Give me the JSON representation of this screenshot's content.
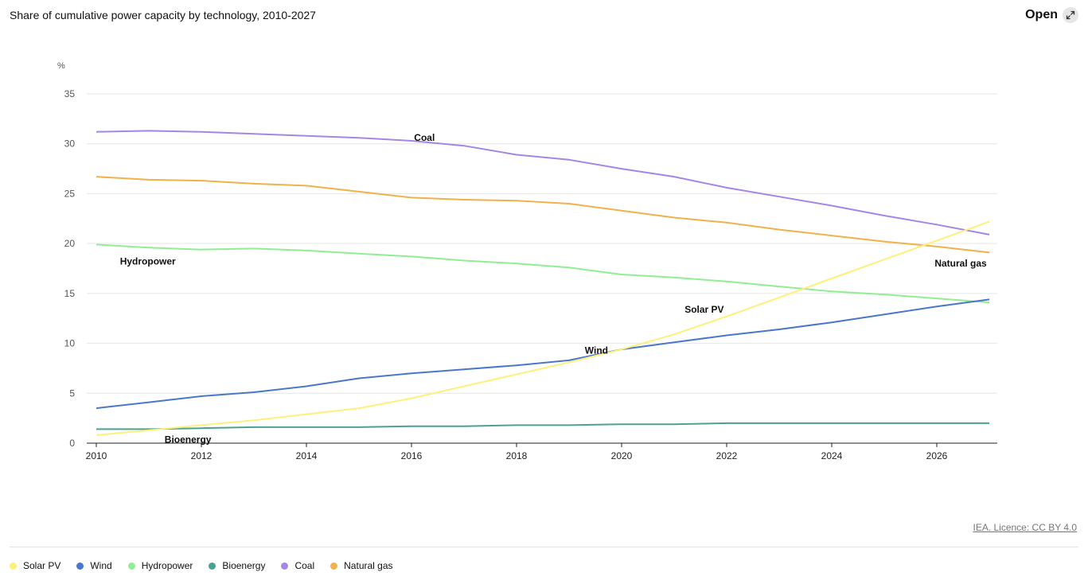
{
  "header": {
    "title": "Share of cumulative power capacity by technology, 2010-2027",
    "open_label": "Open",
    "open_icon": "expand-icon"
  },
  "credit": "IEA. Licence: CC BY 4.0",
  "chart_data": {
    "type": "line",
    "ylabel": "%",
    "ylim": [
      0,
      35
    ],
    "yticks": [
      0,
      5,
      10,
      15,
      20,
      25,
      30,
      35
    ],
    "xlim": [
      2010,
      2027
    ],
    "xticks": [
      2010,
      2012,
      2014,
      2016,
      2018,
      2020,
      2022,
      2024,
      2026
    ],
    "grid": true,
    "legend_position": "bottom",
    "x": [
      2010,
      2011,
      2012,
      2013,
      2014,
      2015,
      2016,
      2017,
      2018,
      2019,
      2020,
      2021,
      2022,
      2023,
      2024,
      2025,
      2026,
      2027
    ],
    "series": [
      {
        "name": "Solar PV",
        "color": "#fdf17b",
        "label_year": 2021.2,
        "label_value": 13.4,
        "values": [
          0.8,
          1.3,
          1.8,
          2.3,
          2.9,
          3.5,
          4.5,
          5.7,
          6.9,
          8.1,
          9.4,
          10.9,
          12.7,
          14.6,
          16.5,
          18.4,
          20.3,
          22.2
        ]
      },
      {
        "name": "Wind",
        "color": "#4a77cb",
        "label_year": 2019.3,
        "label_value": 9.3,
        "values": [
          3.5,
          4.1,
          4.7,
          5.1,
          5.7,
          6.5,
          7.0,
          7.4,
          7.8,
          8.3,
          9.4,
          10.1,
          10.8,
          11.4,
          12.1,
          12.9,
          13.7,
          14.4
        ]
      },
      {
        "name": "Hydropower",
        "color": "#91ee93",
        "label_year": 2010.45,
        "label_value": 18.2,
        "values": [
          19.9,
          19.6,
          19.4,
          19.5,
          19.3,
          19.0,
          18.7,
          18.3,
          18.0,
          17.6,
          16.9,
          16.6,
          16.2,
          15.7,
          15.2,
          14.9,
          14.5,
          14.1
        ]
      },
      {
        "name": "Bioenergy",
        "color": "#4da192",
        "label_year": 2011.3,
        "label_value": 0.35,
        "values": [
          1.4,
          1.4,
          1.5,
          1.6,
          1.6,
          1.6,
          1.7,
          1.7,
          1.8,
          1.8,
          1.9,
          1.9,
          2.0,
          2.0,
          2.0,
          2.0,
          2.0,
          2.0
        ]
      },
      {
        "name": "Coal",
        "color": "#a586e7",
        "label_year": 2016.05,
        "label_value": 30.6,
        "values": [
          31.2,
          31.3,
          31.2,
          31.0,
          30.8,
          30.6,
          30.3,
          29.8,
          28.9,
          28.4,
          27.5,
          26.7,
          25.6,
          24.7,
          23.8,
          22.8,
          21.9,
          20.9
        ]
      },
      {
        "name": "Natural gas",
        "color": "#f1b14b",
        "label_year": 2026.95,
        "label_value": 18.0,
        "values": [
          26.7,
          26.4,
          26.3,
          26.0,
          25.8,
          25.2,
          24.6,
          24.4,
          24.3,
          24.0,
          23.3,
          22.6,
          22.1,
          21.4,
          20.8,
          20.2,
          19.7,
          19.1
        ]
      }
    ]
  }
}
